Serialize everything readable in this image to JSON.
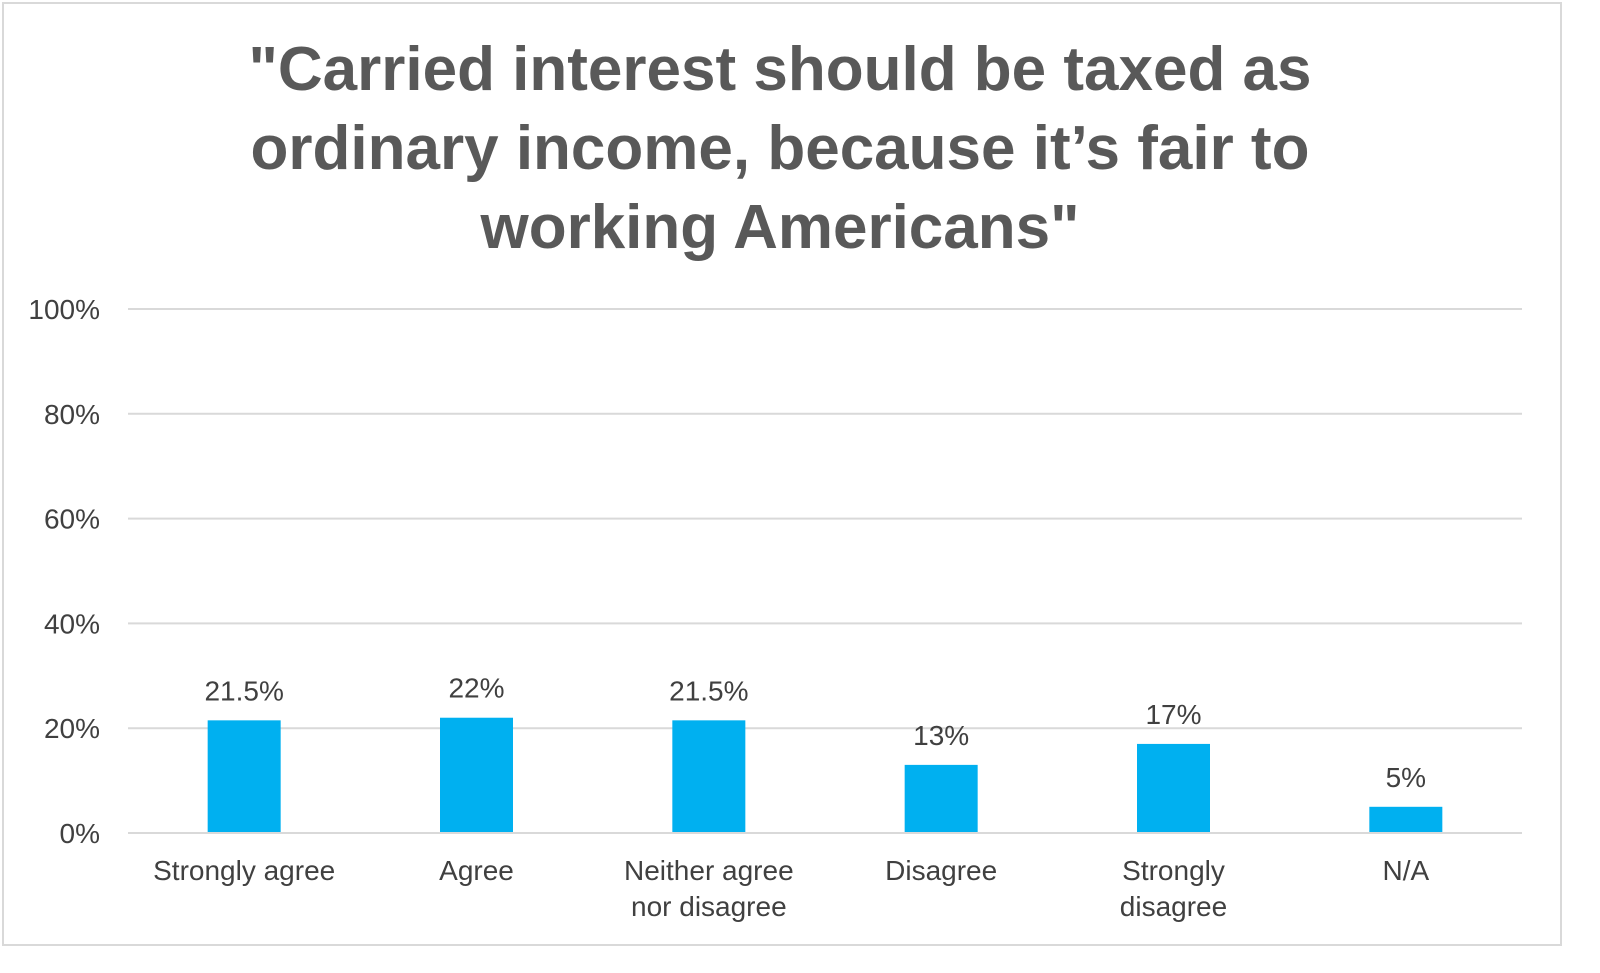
{
  "chart_data": {
    "type": "bar",
    "title": "\"Carried interest should be taxed as ordinary income, because it’s fair to working Americans\"",
    "title_lines": [
      "\"Carried interest should be taxed as",
      "ordinary income, because it’s fair to",
      "working Americans\""
    ],
    "categories": [
      "Strongly agree",
      "Agree",
      "Neither agree nor disagree",
      "Disagree",
      "Strongly disagree",
      "N/A"
    ],
    "category_lines": [
      [
        "Strongly agree"
      ],
      [
        "Agree"
      ],
      [
        "Neither agree",
        "nor disagree"
      ],
      [
        "Disagree"
      ],
      [
        "Strongly",
        "disagree"
      ],
      [
        "N/A"
      ]
    ],
    "values": [
      21.5,
      22,
      21.5,
      13,
      17,
      5
    ],
    "data_labels": [
      "21.5%",
      "22%",
      "21.5%",
      "13%",
      "17%",
      "5%"
    ],
    "yticks": [
      0,
      20,
      40,
      60,
      80,
      100
    ],
    "ytick_labels": [
      "0%",
      "20%",
      "40%",
      "60%",
      "80%",
      "100%"
    ],
    "ylim": [
      0,
      100
    ],
    "xlabel": "",
    "ylabel": "",
    "grid": true,
    "legend": "none",
    "bar_color": "#00b0f0",
    "gridline_color": "#d9d9d9",
    "text_color": "#404040",
    "title_color": "#595959"
  }
}
